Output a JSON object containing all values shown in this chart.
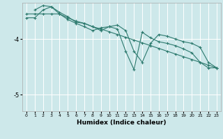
{
  "xlabel": "Humidex (Indice chaleur)",
  "bg_color": "#cde8ea",
  "grid_color": "#ffffff",
  "line_color": "#2d7a6e",
  "xlim": [
    -0.5,
    23.5
  ],
  "ylim": [
    -5.3,
    -3.35
  ],
  "yticks": [
    -5,
    -4
  ],
  "xticks": [
    0,
    1,
    2,
    3,
    4,
    5,
    6,
    7,
    8,
    9,
    10,
    11,
    12,
    13,
    14,
    15,
    16,
    17,
    18,
    19,
    20,
    21,
    22,
    23
  ],
  "line1_x": [
    0,
    1,
    2,
    3,
    4,
    5,
    6,
    7,
    8,
    9,
    10,
    11,
    12,
    13,
    14,
    15,
    16,
    17,
    18,
    19,
    20,
    21,
    22,
    23
  ],
  "line1_y": [
    -3.55,
    -3.55,
    -3.55,
    -3.55,
    -3.55,
    -3.62,
    -3.68,
    -3.72,
    -3.78,
    -3.82,
    -3.87,
    -3.92,
    -3.97,
    -4.02,
    -4.07,
    -4.12,
    -4.17,
    -4.22,
    -4.27,
    -4.32,
    -4.37,
    -4.42,
    -4.47,
    -4.52
  ],
  "line2_x": [
    0,
    1,
    2,
    3,
    4,
    5,
    6,
    7,
    8,
    9,
    10,
    11,
    12,
    13,
    14,
    15,
    16,
    17,
    18,
    19,
    20,
    21,
    22,
    23
  ],
  "line2_y": [
    -3.62,
    -3.62,
    -3.48,
    -3.42,
    -3.52,
    -3.6,
    -3.7,
    -3.72,
    -3.78,
    -3.85,
    -3.78,
    -3.75,
    -3.85,
    -4.22,
    -4.42,
    -4.08,
    -3.92,
    -3.95,
    -4.0,
    -4.05,
    -4.08,
    -4.15,
    -4.42,
    -4.52
  ],
  "line3_x": [
    1,
    2,
    3,
    4,
    5,
    6,
    7,
    8,
    9,
    10,
    11,
    12,
    13,
    14,
    15,
    16,
    17,
    18,
    19,
    20,
    21,
    22,
    23
  ],
  "line3_y": [
    -3.48,
    -3.4,
    -3.42,
    -3.55,
    -3.65,
    -3.72,
    -3.78,
    -3.85,
    -3.8,
    -3.78,
    -3.82,
    -4.22,
    -4.55,
    -3.88,
    -3.98,
    -4.05,
    -4.08,
    -4.12,
    -4.18,
    -4.25,
    -4.42,
    -4.52,
    -4.52
  ],
  "markersize": 3,
  "linewidth": 0.8
}
